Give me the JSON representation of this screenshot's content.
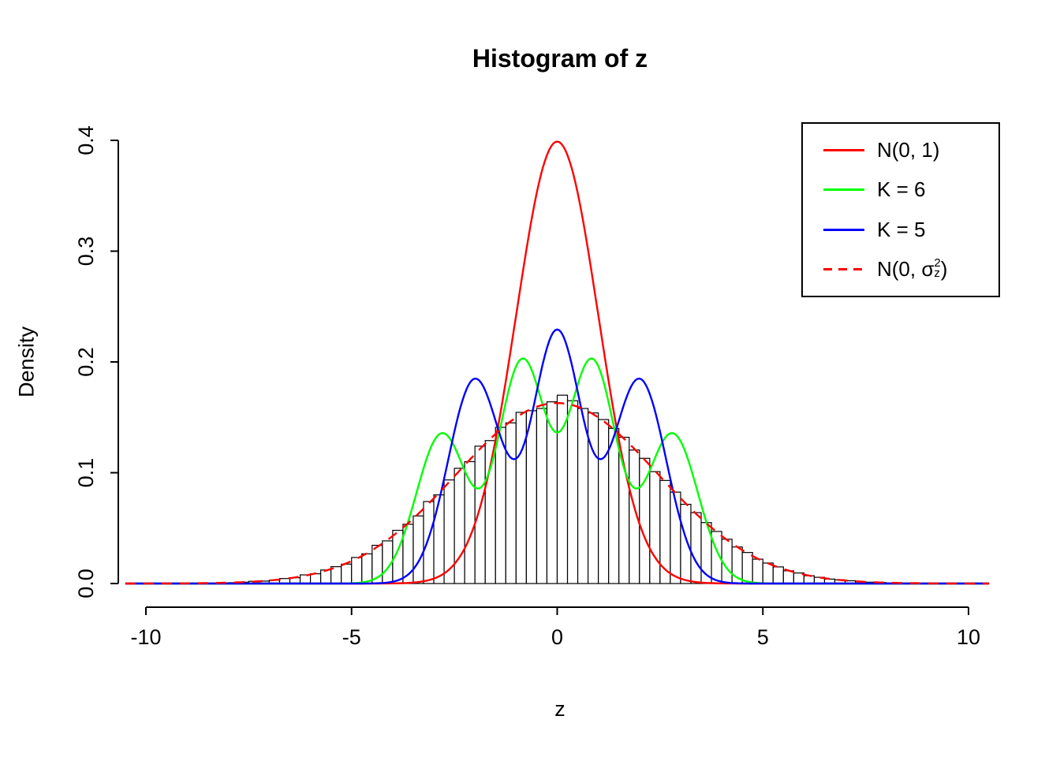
{
  "page": {
    "background": "#ffffff"
  },
  "chart_data": {
    "type": "histogram",
    "title": "Histogram of z",
    "xlabel": "z",
    "ylabel": "Density",
    "xlim": [
      -10.5,
      10.5
    ],
    "ylim": [
      0,
      0.4
    ],
    "grid": false,
    "x_ticks": {
      "values": [
        -10,
        -5,
        0,
        5,
        10
      ],
      "labels": [
        "-10",
        "-5",
        "0",
        "5",
        "10"
      ]
    },
    "y_ticks": {
      "values": [
        0,
        0.1,
        0.2,
        0.3,
        0.4
      ],
      "labels": [
        "0.0",
        "0.1",
        "0.2",
        "0.3",
        "0.4"
      ]
    },
    "histogram": {
      "bin_start": -9,
      "bin_width": 0.25,
      "bar_fill": "#ffffff",
      "bar_stroke": "#000000",
      "heights": [
        0.0003,
        0.0002,
        0.0004,
        0.0005,
        0.0008,
        0.0012,
        0.002,
        0.0022,
        0.003,
        0.0045,
        0.0052,
        0.0078,
        0.0088,
        0.0122,
        0.0152,
        0.0175,
        0.0235,
        0.0268,
        0.0345,
        0.0385,
        0.048,
        0.0535,
        0.061,
        0.074,
        0.08,
        0.0935,
        0.104,
        0.11,
        0.124,
        0.129,
        0.141,
        0.145,
        0.1545,
        0.156,
        0.158,
        0.164,
        0.17,
        0.165,
        0.158,
        0.154,
        0.148,
        0.14,
        0.132,
        0.1205,
        0.113,
        0.101,
        0.093,
        0.0825,
        0.0715,
        0.064,
        0.055,
        0.047,
        0.04,
        0.033,
        0.028,
        0.022,
        0.0185,
        0.015,
        0.0115,
        0.0095,
        0.007,
        0.0056,
        0.004,
        0.0033,
        0.0025,
        0.0018,
        0.0012,
        0.0009,
        0.0006,
        0.0004,
        0.0002,
        0.0003
      ]
    },
    "curves": [
      {
        "name": "N(0, 1)",
        "color": "#ff0000",
        "dash": false,
        "mixture": {
          "weights": [
            1
          ],
          "means": [
            0
          ],
          "sds": [
            1
          ]
        }
      },
      {
        "name": "K = 6",
        "color": "#00ff00",
        "dash": false,
        "mixture": {
          "weights": [
            0.21,
            0.29,
            0.29,
            0.21
          ],
          "means": [
            -2.8,
            -0.85,
            0.85,
            2.8
          ],
          "sds": [
            0.62,
            0.58,
            0.58,
            0.62
          ]
        }
      },
      {
        "name": "K = 5",
        "color": "#0000ff",
        "dash": false,
        "mixture": {
          "weights": [
            0.3,
            0.34,
            0.3
          ],
          "means": [
            -2,
            0,
            2
          ],
          "sds": [
            0.65,
            0.6,
            0.65
          ]
        }
      },
      {
        "name": "N(0, σ_z²)",
        "color": "#ff0000",
        "dash": true,
        "mixture": {
          "weights": [
            1
          ],
          "means": [
            0
          ],
          "sds": [
            2.449
          ]
        }
      }
    ],
    "legend": {
      "position": "top-right",
      "items": [
        {
          "label": "N(0, 1)"
        },
        {
          "label": "K = 6"
        },
        {
          "label": "K = 5"
        },
        {
          "prefix": "N(0, ",
          "sigma": "σ",
          "sup": "2",
          "sub": "z",
          "suffix": ")"
        }
      ]
    }
  }
}
